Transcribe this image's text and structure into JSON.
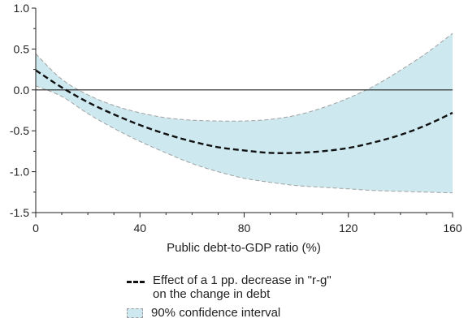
{
  "chart_data": {
    "type": "line",
    "title": "",
    "xlabel": "Public debt-to-GDP ratio (%)",
    "ylabel": "",
    "xlim": [
      0,
      160
    ],
    "ylim": [
      -1.5,
      1.0
    ],
    "xticks": [
      0,
      40,
      80,
      120,
      160
    ],
    "xtick_labels": [
      "0",
      "40",
      "80",
      "120",
      "160"
    ],
    "yticks": [
      1.0,
      0.5,
      0.0,
      -0.5,
      -1.0,
      -1.5
    ],
    "ytick_labels": [
      "1.0",
      "0.5",
      "0.0",
      "-0.5",
      "-1.0",
      "-1.5"
    ],
    "zero_line": true,
    "grid": false,
    "legend_position": "bottom",
    "x": [
      0,
      10,
      20,
      30,
      40,
      50,
      60,
      70,
      80,
      90,
      100,
      110,
      120,
      130,
      140,
      150,
      160
    ],
    "series": [
      {
        "name": "Effect of a 1 pp. decrease in \"r-g\" on the change in debt",
        "style": "dashed",
        "values": [
          0.24,
          0.03,
          -0.15,
          -0.3,
          -0.43,
          -0.54,
          -0.63,
          -0.7,
          -0.74,
          -0.77,
          -0.77,
          -0.75,
          -0.71,
          -0.64,
          -0.55,
          -0.43,
          -0.28
        ]
      }
    ],
    "band": {
      "name": "90% confidence interval",
      "upper": [
        0.44,
        0.13,
        -0.06,
        -0.19,
        -0.28,
        -0.34,
        -0.37,
        -0.38,
        -0.38,
        -0.36,
        -0.31,
        -0.22,
        -0.1,
        0.05,
        0.24,
        0.45,
        0.69
      ],
      "lower": [
        0.05,
        -0.08,
        -0.29,
        -0.47,
        -0.63,
        -0.77,
        -0.9,
        -1.0,
        -1.08,
        -1.13,
        -1.17,
        -1.19,
        -1.21,
        -1.23,
        -1.24,
        -1.25,
        -1.26
      ]
    },
    "legend": [
      {
        "label_line1": "Effect of a 1 pp. decrease in \"r-g\"",
        "label_line2": "on the change in debt"
      },
      {
        "label_line1": "90% confidence interval"
      }
    ],
    "colors": {
      "band_fill": "#cde9ef",
      "band_edge": "#a0a0a0",
      "line": "#111111",
      "axis": "#222222"
    }
  }
}
